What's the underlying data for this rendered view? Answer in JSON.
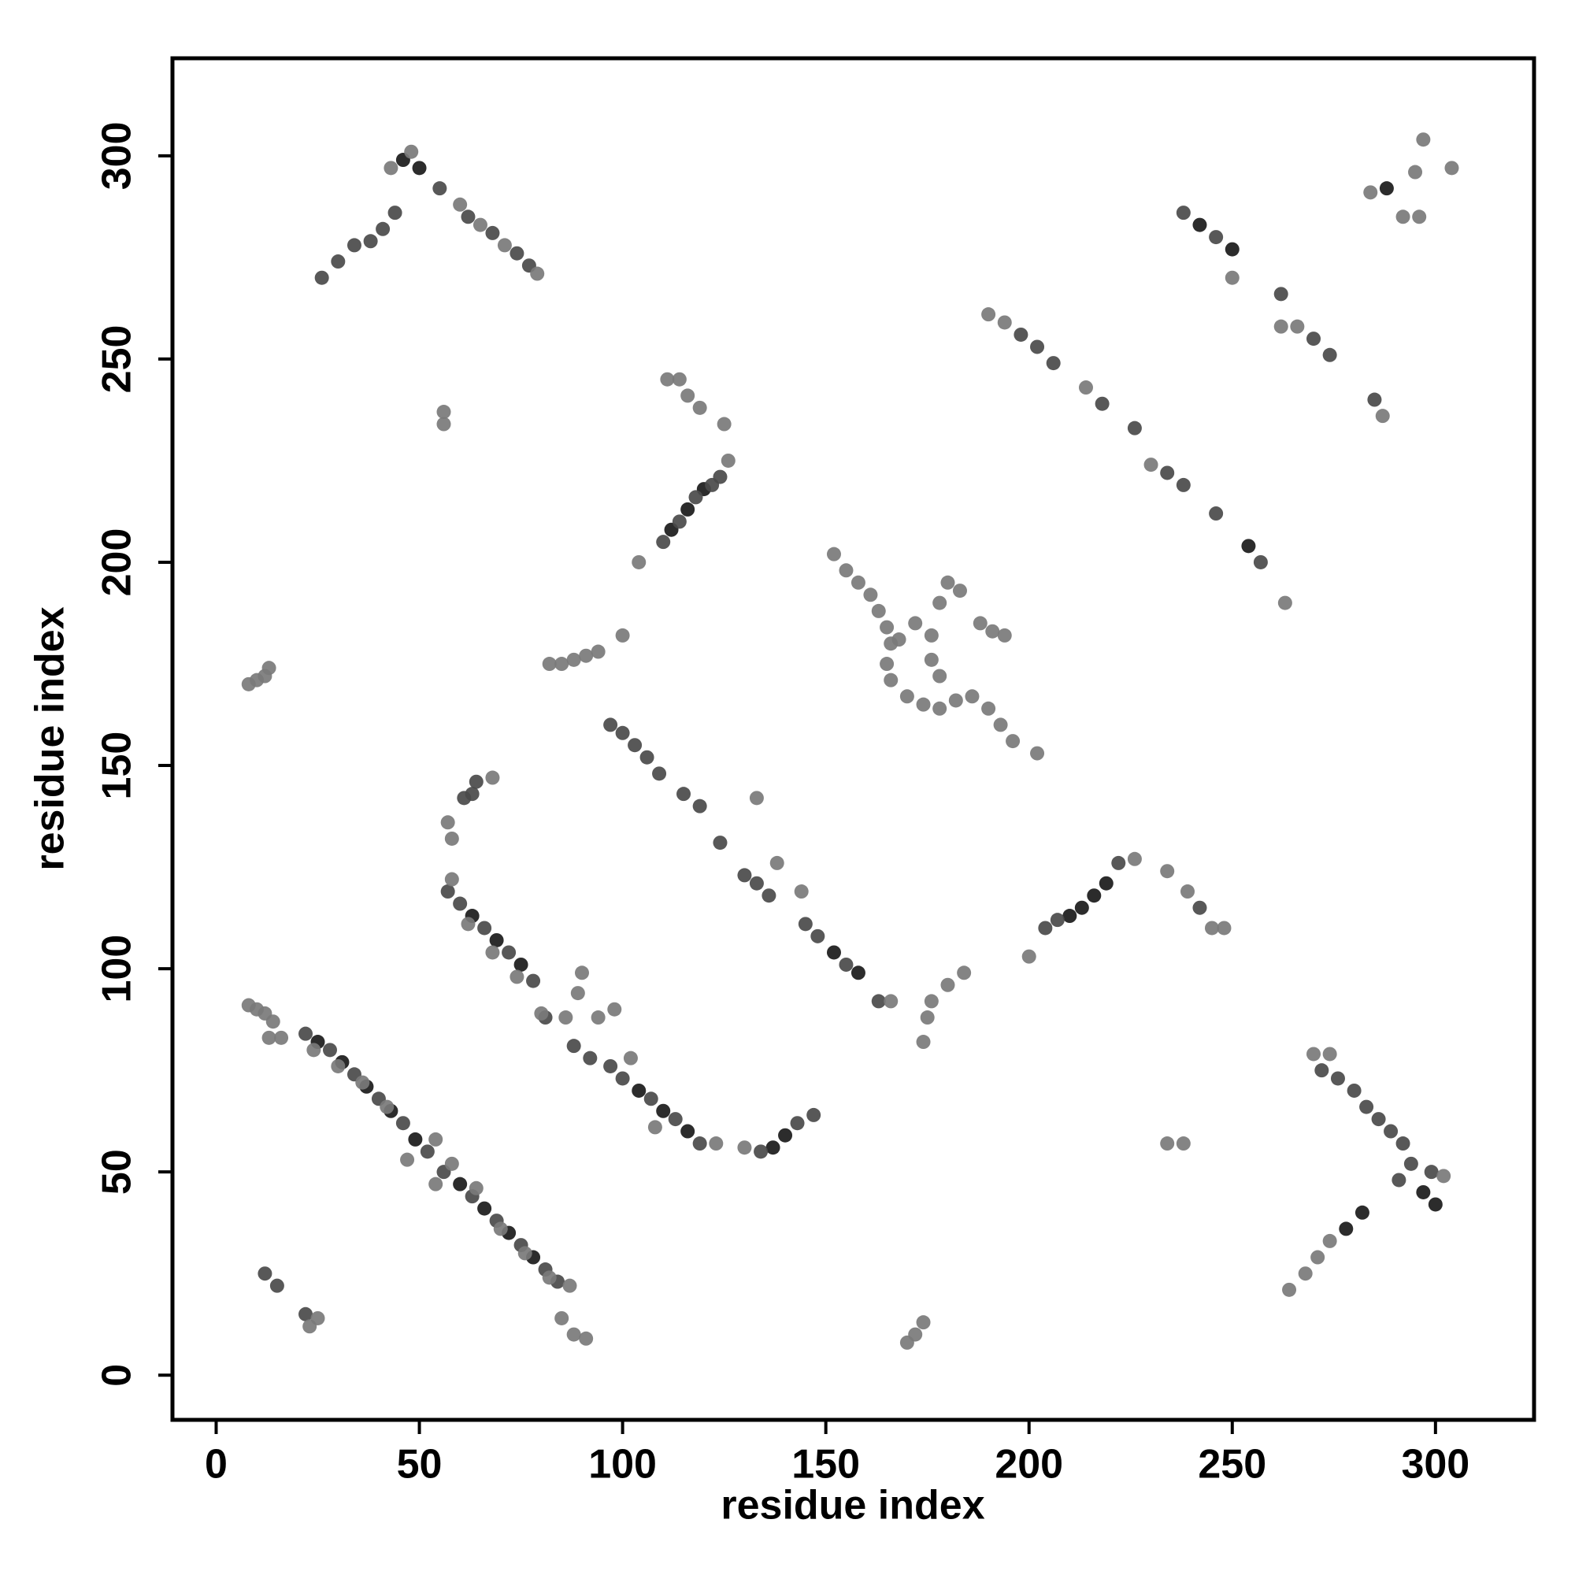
{
  "chart_data": {
    "type": "scatter",
    "xlabel": "residue index",
    "ylabel": "residue index",
    "xlim": [
      -10.75,
      324.25
    ],
    "ylim": [
      -11,
      324
    ],
    "xticks": [
      0,
      50,
      100,
      150,
      200,
      250,
      300
    ],
    "yticks": [
      0,
      50,
      100,
      150,
      200,
      250,
      300
    ],
    "series": [
      {
        "color": "#1a1a1a",
        "x": [
          25,
          31,
          37,
          43,
          49,
          60,
          66,
          72,
          78,
          63,
          69,
          75,
          104,
          110,
          116,
          112,
          116,
          120,
          137,
          140,
          152,
          158,
          210,
          213,
          216,
          219,
          46,
          50,
          288,
          297,
          300,
          278,
          282,
          242,
          250,
          254
        ],
        "y": [
          82,
          77,
          71,
          65,
          58,
          47,
          41,
          35,
          29,
          113,
          107,
          101,
          70,
          65,
          60,
          208,
          213,
          218,
          56,
          59,
          104,
          99,
          113,
          115,
          118,
          121,
          299,
          297,
          292,
          45,
          42,
          36,
          40,
          283,
          277,
          204
        ]
      },
      {
        "color": "#4a4a4a",
        "x": [
          22,
          28,
          34,
          40,
          46,
          52,
          56,
          63,
          69,
          75,
          81,
          84,
          57,
          60,
          66,
          72,
          78,
          81,
          88,
          92,
          97,
          100,
          107,
          113,
          119,
          134,
          143,
          147,
          61,
          63,
          64,
          97,
          100,
          103,
          106,
          109,
          115,
          119,
          124,
          130,
          133,
          136,
          145,
          148,
          155,
          163,
          110,
          114,
          118,
          122,
          124,
          12,
          15,
          22,
          26,
          30,
          34,
          38,
          41,
          44,
          55,
          62,
          68,
          74,
          77,
          198,
          202,
          206,
          218,
          226,
          234,
          238,
          246,
          257,
          238,
          246,
          262,
          270,
          274,
          285,
          291,
          294,
          299,
          272,
          276,
          280,
          283,
          286,
          289,
          292,
          204,
          207,
          222,
          242
        ],
        "y": [
          84,
          80,
          74,
          68,
          62,
          55,
          50,
          44,
          38,
          32,
          26,
          23,
          119,
          116,
          110,
          104,
          97,
          88,
          81,
          78,
          76,
          73,
          68,
          63,
          57,
          55,
          62,
          64,
          142,
          143,
          146,
          160,
          158,
          155,
          152,
          148,
          143,
          140,
          131,
          123,
          121,
          118,
          111,
          108,
          101,
          92,
          205,
          210,
          216,
          219,
          221,
          25,
          22,
          15,
          270,
          274,
          278,
          279,
          282,
          286,
          292,
          285,
          281,
          276,
          273,
          256,
          253,
          249,
          239,
          233,
          222,
          219,
          212,
          200,
          286,
          280,
          266,
          255,
          251,
          240,
          48,
          52,
          50,
          75,
          73,
          70,
          66,
          63,
          60,
          57,
          110,
          112,
          126,
          115
        ]
      },
      {
        "color": "#7a7a7a",
        "x": [
          24,
          30,
          36,
          42,
          54,
          58,
          47,
          54,
          64,
          70,
          76,
          82,
          87,
          85,
          88,
          91,
          58,
          62,
          68,
          74,
          80,
          86,
          89,
          90,
          98,
          94,
          102,
          108,
          123,
          130,
          166,
          133,
          138,
          144,
          57,
          58,
          68,
          104,
          111,
          114,
          116,
          119,
          125,
          126,
          56,
          56,
          82,
          85,
          88,
          91,
          94,
          100,
          8,
          10,
          12,
          13,
          8,
          10,
          12,
          14,
          13,
          16,
          23,
          25,
          48,
          43,
          60,
          65,
          71,
          79,
          152,
          155,
          158,
          161,
          163,
          165,
          166,
          165,
          166,
          170,
          174,
          178,
          182,
          186,
          190,
          193,
          196,
          168,
          172,
          176,
          178,
          180,
          183,
          188,
          191,
          194,
          176,
          178,
          174,
          175,
          176,
          180,
          184,
          170,
          172,
          174,
          200,
          226,
          234,
          239,
          245,
          248,
          190,
          194,
          202,
          214,
          230,
          262,
          263,
          266,
          287,
          284,
          292,
          295,
          296,
          297,
          304,
          264,
          268,
          271,
          274,
          302,
          270,
          274,
          234,
          238,
          250
        ],
        "y": [
          80,
          76,
          72,
          66,
          58,
          52,
          53,
          47,
          46,
          36,
          30,
          24,
          22,
          14,
          10,
          9,
          122,
          111,
          104,
          98,
          89,
          88,
          94,
          99,
          90,
          88,
          78,
          61,
          57,
          56,
          92,
          142,
          126,
          119,
          136,
          132,
          147,
          200,
          245,
          245,
          241,
          238,
          234,
          225,
          237,
          234,
          175,
          175,
          176,
          177,
          178,
          182,
          170,
          171,
          172,
          174,
          91,
          90,
          89,
          87,
          83,
          83,
          12,
          14,
          301,
          297,
          288,
          283,
          278,
          271,
          202,
          198,
          195,
          192,
          188,
          184,
          180,
          175,
          171,
          167,
          165,
          164,
          166,
          167,
          164,
          160,
          156,
          181,
          185,
          182,
          190,
          195,
          193,
          185,
          183,
          182,
          176,
          172,
          82,
          88,
          92,
          96,
          99,
          8,
          10,
          13,
          103,
          127,
          124,
          119,
          110,
          110,
          261,
          259,
          153,
          243,
          224,
          258,
          190,
          258,
          236,
          291,
          285,
          296,
          285,
          304,
          297,
          21,
          25,
          29,
          33,
          49,
          79,
          79,
          57,
          57,
          270
        ]
      }
    ]
  }
}
